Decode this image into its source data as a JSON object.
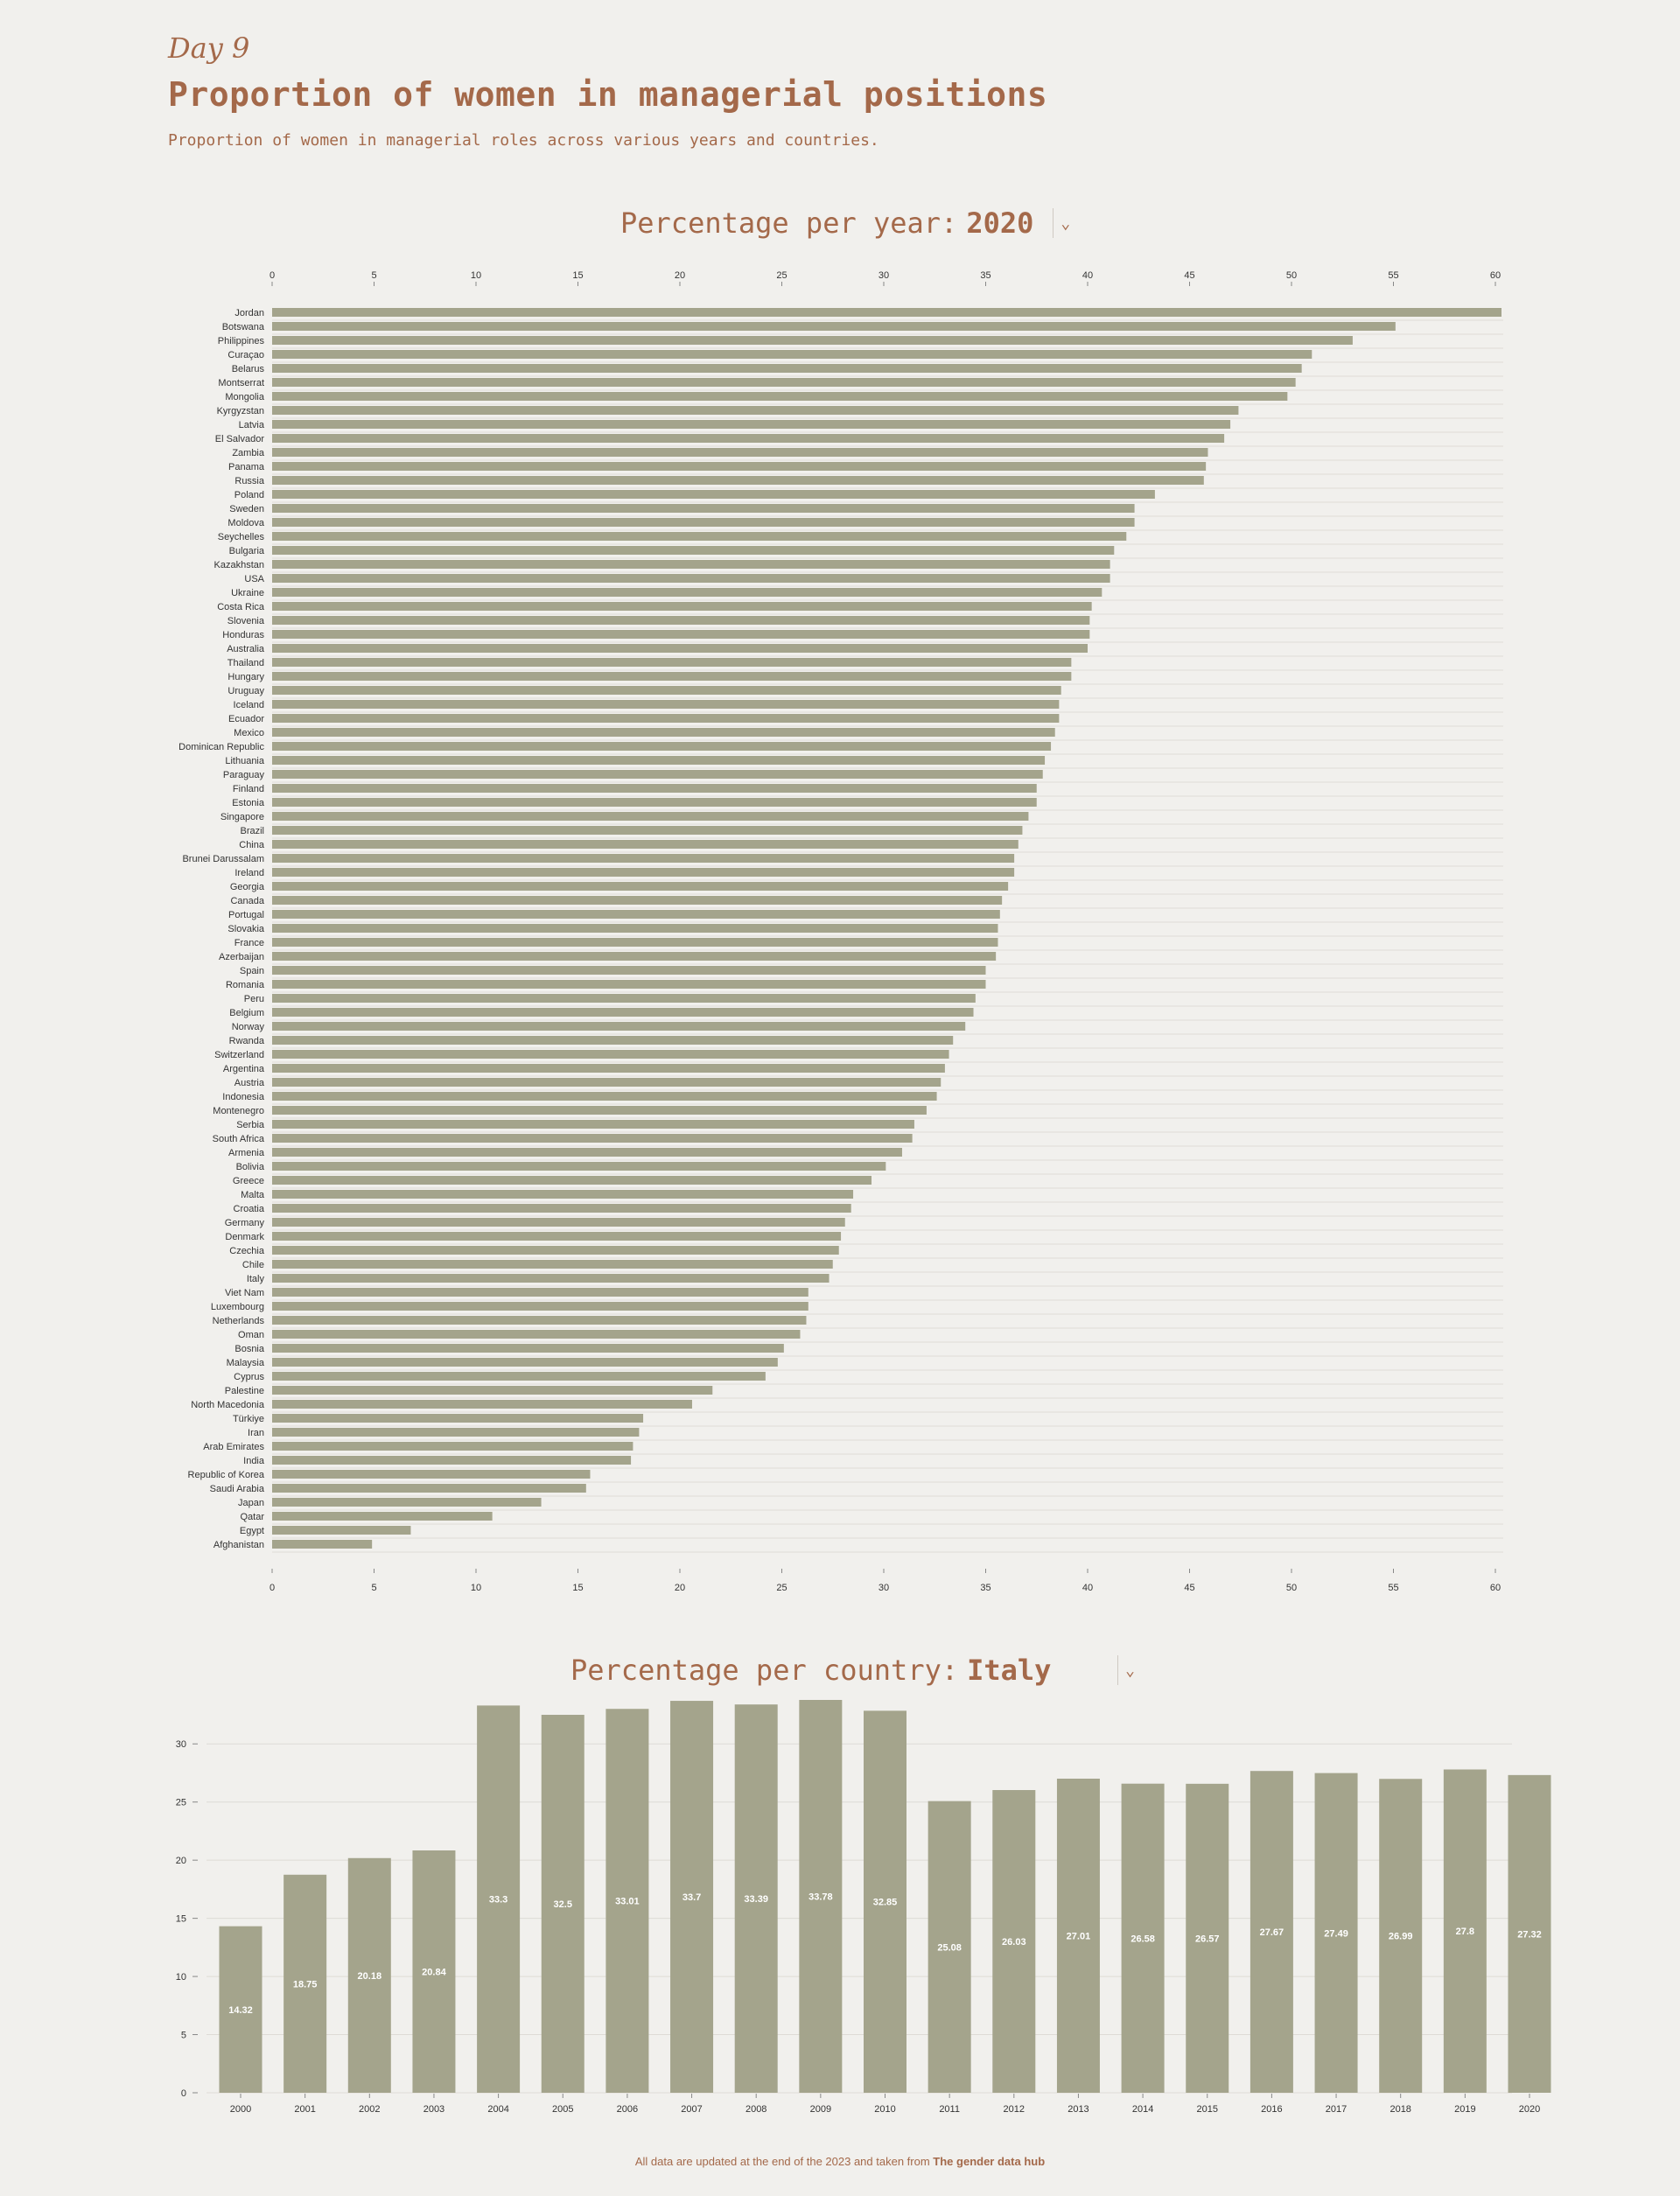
{
  "header": {
    "day": "Day 9",
    "title": "Proportion of women in managerial positions",
    "subtitle": "Proportion of women in managerial roles across various years and countries."
  },
  "year_selector": {
    "label": "Percentage per year:",
    "value": "2020"
  },
  "country_selector": {
    "label": "Percentage per country:",
    "value": "Italy"
  },
  "footer": {
    "text": "All data are updated at the end of the 2023 and taken from",
    "link": "The gender data hub"
  },
  "colors": {
    "bar": "#a4a48c",
    "accent": "#a4694a",
    "background": "#f1f0ed",
    "grid": "#dedbd6"
  },
  "chart_data": [
    {
      "type": "bar",
      "orientation": "horizontal",
      "title": "Percentage per year: 2020",
      "xlim": [
        0,
        60
      ],
      "xticks": [
        0,
        5,
        10,
        15,
        20,
        25,
        30,
        35,
        40,
        45,
        50,
        55,
        60
      ],
      "categories": [
        "Jordan",
        "Botswana",
        "Philippines",
        "Curaçao",
        "Belarus",
        "Montserrat",
        "Mongolia",
        "Kyrgyzstan",
        "Latvia",
        "El Salvador",
        "Zambia",
        "Panama",
        "Russia",
        "Poland",
        "Sweden",
        "Moldova",
        "Seychelles",
        "Bulgaria",
        "Kazakhstan",
        "USA",
        "Ukraine",
        "Costa Rica",
        "Slovenia",
        "Honduras",
        "Australia",
        "Thailand",
        "Hungary",
        "Uruguay",
        "Iceland",
        "Ecuador",
        "Mexico",
        "Dominican Republic",
        "Lithuania",
        "Paraguay",
        "Finland",
        "Estonia",
        "Singapore",
        "Brazil",
        "China",
        "Brunei Darussalam",
        "Ireland",
        "Georgia",
        "Canada",
        "Portugal",
        "Slovakia",
        "France",
        "Azerbaijan",
        "Spain",
        "Romania",
        "Peru",
        "Belgium",
        "Norway",
        "Rwanda",
        "Switzerland",
        "Argentina",
        "Austria",
        "Indonesia",
        "Montenegro",
        "Serbia",
        "South Africa",
        "Armenia",
        "Bolivia",
        "Greece",
        "Malta",
        "Croatia",
        "Germany",
        "Denmark",
        "Czechia",
        "Chile",
        "Italy",
        "Viet Nam",
        "Luxembourg",
        "Netherlands",
        "Oman",
        "Bosnia",
        "Malaysia",
        "Cyprus",
        "Palestine",
        "North Macedonia",
        "Türkiye",
        "Iran",
        "Arab Emirates",
        "India",
        "Republic of Korea",
        "Saudi Arabia",
        "Japan",
        "Qatar",
        "Egypt",
        "Afghanistan"
      ],
      "values": [
        60.3,
        55.1,
        53.0,
        51.0,
        50.5,
        50.2,
        49.8,
        47.4,
        47.0,
        46.7,
        45.9,
        45.8,
        45.7,
        43.3,
        42.3,
        42.3,
        41.9,
        41.3,
        41.1,
        41.1,
        40.7,
        40.2,
        40.1,
        40.1,
        40.0,
        39.2,
        39.2,
        38.7,
        38.6,
        38.6,
        38.4,
        38.2,
        37.9,
        37.8,
        37.5,
        37.5,
        37.1,
        36.8,
        36.6,
        36.4,
        36.4,
        36.1,
        35.8,
        35.7,
        35.6,
        35.6,
        35.5,
        35.0,
        35.0,
        34.5,
        34.4,
        34.0,
        33.4,
        33.2,
        33.0,
        32.8,
        32.6,
        32.1,
        31.5,
        31.4,
        30.9,
        30.1,
        29.4,
        28.5,
        28.4,
        28.1,
        27.9,
        27.8,
        27.5,
        27.32,
        26.3,
        26.3,
        26.2,
        25.9,
        25.1,
        24.8,
        24.2,
        21.6,
        20.6,
        18.2,
        18.0,
        17.7,
        17.6,
        15.6,
        15.4,
        13.2,
        10.8,
        6.8,
        4.9
      ]
    },
    {
      "type": "bar",
      "orientation": "vertical",
      "title": "Percentage per country: Italy",
      "ylim": [
        0,
        33.78
      ],
      "yticks": [
        0,
        5,
        10,
        15,
        20,
        25,
        30
      ],
      "categories": [
        "2000",
        "2001",
        "2002",
        "2003",
        "2004",
        "2005",
        "2006",
        "2007",
        "2008",
        "2009",
        "2010",
        "2011",
        "2012",
        "2013",
        "2014",
        "2015",
        "2016",
        "2017",
        "2018",
        "2019",
        "2020"
      ],
      "values": [
        14.32,
        18.75,
        20.18,
        20.84,
        33.3,
        32.5,
        33.01,
        33.7,
        33.39,
        33.78,
        32.85,
        25.08,
        26.03,
        27.01,
        26.58,
        26.57,
        27.67,
        27.49,
        26.99,
        27.8,
        27.32
      ],
      "data_labels": [
        "14.32",
        "18.75",
        "20.18",
        "20.84",
        "33.3",
        "32.5",
        "33.01",
        "33.7",
        "33.39",
        "33.78",
        "32.85",
        "25.08",
        "26.03",
        "27.01",
        "26.58",
        "26.57",
        "27.67",
        "27.49",
        "26.99",
        "27.8",
        "27.32"
      ]
    }
  ]
}
